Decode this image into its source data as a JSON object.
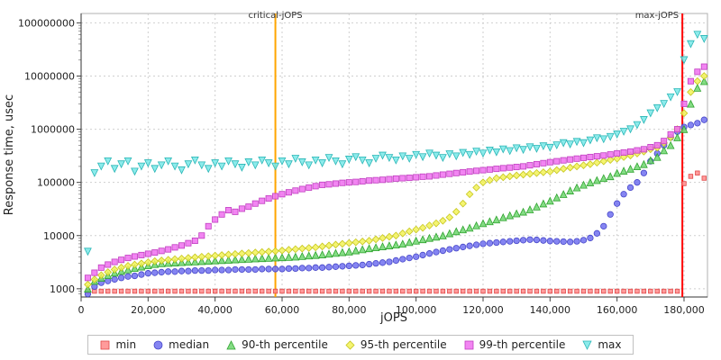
{
  "chart_data": {
    "type": "scatter",
    "title": "",
    "xlabel": "jOPS",
    "ylabel": "Response time, usec",
    "y_scale": "log",
    "grid": true,
    "legend_position": "bottom",
    "xlim": [
      0,
      187000
    ],
    "ylim": [
      700,
      150000000
    ],
    "x_ticks": [
      0,
      20000,
      40000,
      60000,
      80000,
      100000,
      120000,
      140000,
      160000,
      180000
    ],
    "x_tick_labels": [
      "0",
      "20,000",
      "40,000",
      "60,000",
      "80,000",
      "100,000",
      "120,000",
      "140,000",
      "160,000",
      "180,000"
    ],
    "y_ticks": [
      1000,
      10000,
      100000,
      1000000,
      10000000,
      100000000
    ],
    "y_tick_labels": [
      "1000",
      "10000",
      "100000",
      "1000000",
      "10000000",
      "100000000"
    ],
    "annotations": [
      {
        "label": "critical-jOPS",
        "x": 58000,
        "color": "#FFA500",
        "align": "center"
      },
      {
        "label": "max-jOPS",
        "x": 179500,
        "color": "#FF0000",
        "align": "right"
      }
    ],
    "x": [
      2000,
      4000,
      6000,
      8000,
      10000,
      12000,
      14000,
      16000,
      18000,
      20000,
      22000,
      24000,
      26000,
      28000,
      30000,
      32000,
      34000,
      36000,
      38000,
      40000,
      42000,
      44000,
      46000,
      48000,
      50000,
      52000,
      54000,
      56000,
      58000,
      60000,
      62000,
      64000,
      66000,
      68000,
      70000,
      72000,
      74000,
      76000,
      78000,
      80000,
      82000,
      84000,
      86000,
      88000,
      90000,
      92000,
      94000,
      96000,
      98000,
      100000,
      102000,
      104000,
      106000,
      108000,
      110000,
      112000,
      114000,
      116000,
      118000,
      120000,
      122000,
      124000,
      126000,
      128000,
      130000,
      132000,
      134000,
      136000,
      138000,
      140000,
      142000,
      144000,
      146000,
      148000,
      150000,
      152000,
      154000,
      156000,
      158000,
      160000,
      162000,
      164000,
      166000,
      168000,
      170000,
      172000,
      174000,
      176000,
      178000,
      180000,
      182000,
      184000,
      186000
    ],
    "series": [
      {
        "name": "min",
        "marker": "square",
        "color": "#FF8A8A",
        "edge": "#E04848",
        "size": 4.6,
        "values": [
          900,
          900,
          900,
          900,
          900,
          900,
          900,
          900,
          900,
          900,
          900,
          900,
          900,
          900,
          900,
          900,
          900,
          900,
          900,
          900,
          900,
          900,
          900,
          900,
          900,
          900,
          900,
          900,
          900,
          900,
          900,
          900,
          900,
          900,
          900,
          900,
          900,
          900,
          900,
          900,
          900,
          900,
          900,
          900,
          900,
          900,
          900,
          900,
          900,
          900,
          900,
          900,
          900,
          900,
          900,
          900,
          900,
          900,
          900,
          900,
          900,
          900,
          900,
          900,
          900,
          900,
          900,
          900,
          900,
          900,
          900,
          900,
          900,
          900,
          900,
          900,
          900,
          900,
          900,
          900,
          900,
          900,
          900,
          900,
          900,
          900,
          900,
          900,
          900,
          95000,
          130000,
          150000,
          120000
        ]
      },
      {
        "name": "median",
        "marker": "circle",
        "color": "#7070F0",
        "edge": "#4646C8",
        "size": 6.5,
        "values": [
          800,
          1100,
          1300,
          1400,
          1500,
          1600,
          1700,
          1750,
          1850,
          1950,
          2000,
          2050,
          2100,
          2100,
          2150,
          2150,
          2200,
          2200,
          2200,
          2250,
          2250,
          2250,
          2300,
          2300,
          2300,
          2300,
          2350,
          2350,
          2350,
          2350,
          2400,
          2400,
          2450,
          2450,
          2500,
          2500,
          2550,
          2600,
          2650,
          2700,
          2750,
          2800,
          2900,
          3000,
          3100,
          3200,
          3400,
          3600,
          3800,
          4000,
          4300,
          4600,
          4900,
          5200,
          5500,
          5800,
          6100,
          6400,
          6700,
          7000,
          7200,
          7400,
          7600,
          7800,
          8000,
          8200,
          8400,
          8300,
          8100,
          7900,
          7800,
          7700,
          7600,
          7800,
          8200,
          9000,
          11000,
          15000,
          25000,
          40000,
          60000,
          80000,
          100000,
          150000,
          250000,
          350000,
          500000,
          700000,
          900000,
          1100000,
          1200000,
          1300000,
          1500000
        ]
      },
      {
        "name": "90-th percentile",
        "marker": "triangle-up",
        "color": "#6FD66F",
        "edge": "#2FA32F",
        "size": 7.5,
        "values": [
          1000,
          1400,
          1600,
          1800,
          2000,
          2150,
          2300,
          2450,
          2600,
          2750,
          2900,
          3000,
          3050,
          3100,
          3150,
          3200,
          3250,
          3300,
          3350,
          3400,
          3450,
          3500,
          3550,
          3600,
          3650,
          3700,
          3750,
          3800,
          3850,
          3900,
          3950,
          4000,
          4100,
          4200,
          4300,
          4400,
          4550,
          4700,
          4850,
          5000,
          5250,
          5500,
          5750,
          6000,
          6250,
          6500,
          6750,
          7000,
          7500,
          8000,
          8500,
          9000,
          9500,
          10000,
          11000,
          12000,
          13000,
          14000,
          15500,
          17000,
          18500,
          20000,
          22000,
          24000,
          26000,
          28000,
          31000,
          35000,
          40000,
          45000,
          52000,
          60000,
          70000,
          80000,
          90000,
          100000,
          110000,
          120000,
          130000,
          150000,
          165000,
          180000,
          200000,
          220000,
          260000,
          300000,
          400000,
          500000,
          700000,
          1000000,
          3000000,
          6000000,
          8000000
        ]
      },
      {
        "name": "95-th percentile",
        "marker": "diamond",
        "color": "#F2F258",
        "edge": "#C6C61E",
        "size": 7.5,
        "values": [
          1200,
          1500,
          1800,
          2050,
          2300,
          2500,
          2700,
          2850,
          3000,
          3150,
          3300,
          3400,
          3500,
          3600,
          3700,
          3800,
          3900,
          4000,
          4100,
          4200,
          4300,
          4400,
          4500,
          4600,
          4700,
          4800,
          4900,
          5000,
          5100,
          5250,
          5400,
          5550,
          5700,
          5850,
          6000,
          6250,
          6500,
          6750,
          7000,
          7250,
          7500,
          7750,
          8000,
          8500,
          9000,
          9500,
          10000,
          11000,
          12000,
          13000,
          14000,
          15500,
          17000,
          19000,
          22000,
          28000,
          40000,
          60000,
          80000,
          100000,
          110000,
          120000,
          125000,
          130000,
          135000,
          140000,
          145000,
          150000,
          155000,
          160000,
          170000,
          180000,
          190000,
          200000,
          210000,
          220000,
          235000,
          250000,
          265000,
          280000,
          300000,
          320000,
          350000,
          380000,
          420000,
          450000,
          550000,
          700000,
          1000000,
          2000000,
          5000000,
          8000000,
          10000000
        ]
      },
      {
        "name": "99-th percentile",
        "marker": "square",
        "color": "#F070F0",
        "edge": "#C03EC0",
        "size": 6.2,
        "values": [
          1600,
          2000,
          2500,
          2850,
          3200,
          3500,
          3800,
          4050,
          4300,
          4550,
          4800,
          5150,
          5500,
          6000,
          6500,
          7200,
          8000,
          10000,
          15000,
          20000,
          25000,
          30000,
          28000,
          32000,
          35000,
          40000,
          45000,
          50000,
          55000,
          60000,
          65000,
          70000,
          75000,
          80000,
          85000,
          90000,
          92000,
          95000,
          98000,
          100000,
          102000,
          105000,
          108000,
          110000,
          112000,
          115000,
          118000,
          120000,
          122000,
          125000,
          128000,
          130000,
          135000,
          140000,
          145000,
          150000,
          155000,
          160000,
          165000,
          170000,
          175000,
          180000,
          185000,
          190000,
          195000,
          200000,
          210000,
          220000,
          230000,
          240000,
          250000,
          260000,
          270000,
          280000,
          290000,
          300000,
          310000,
          320000,
          335000,
          350000,
          365000,
          380000,
          400000,
          420000,
          460000,
          500000,
          600000,
          800000,
          1000000,
          3000000,
          8000000,
          12000000,
          15000000
        ]
      },
      {
        "name": "max",
        "marker": "triangle-down",
        "color": "#78E8E8",
        "edge": "#2AB6B6",
        "size": 7.5,
        "values": [
          5000,
          150000,
          200000,
          250000,
          180000,
          220000,
          250000,
          160000,
          200000,
          230000,
          180000,
          210000,
          250000,
          200000,
          170000,
          220000,
          260000,
          210000,
          180000,
          230000,
          200000,
          250000,
          220000,
          190000,
          240000,
          210000,
          260000,
          230000,
          200000,
          250000,
          220000,
          280000,
          240000,
          210000,
          260000,
          230000,
          290000,
          250000,
          220000,
          270000,
          300000,
          260000,
          230000,
          280000,
          320000,
          290000,
          260000,
          310000,
          280000,
          330000,
          300000,
          350000,
          320000,
          290000,
          340000,
          310000,
          360000,
          330000,
          380000,
          350000,
          400000,
          370000,
          420000,
          390000,
          440000,
          410000,
          460000,
          430000,
          480000,
          450000,
          500000,
          550000,
          520000,
          580000,
          550000,
          620000,
          680000,
          650000,
          720000,
          800000,
          900000,
          1000000,
          1200000,
          1500000,
          2000000,
          2500000,
          3000000,
          4000000,
          5000000,
          20000000,
          40000000,
          60000000,
          50000000
        ]
      }
    ]
  }
}
